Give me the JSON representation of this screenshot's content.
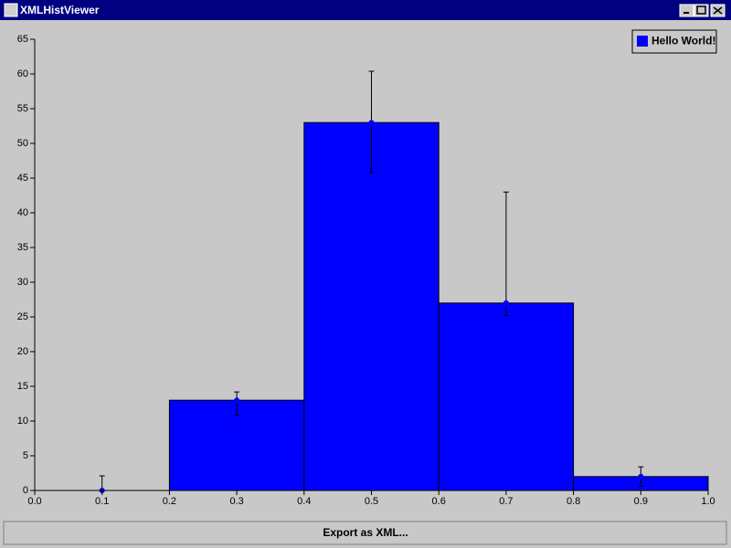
{
  "window": {
    "title": "XMLHistViewer"
  },
  "chart_data": {
    "type": "histogram",
    "bins": [
      0,
      0.2,
      0.4,
      0.6,
      0.8,
      1.0
    ],
    "series": [
      {
        "name": "Hello World!",
        "color": "#0000ff",
        "values": [
          0,
          13,
          53,
          27,
          2
        ],
        "error_minus": [
          0,
          2.2,
          7.2,
          1.8,
          1.4
        ],
        "error_plus": [
          2.1,
          1.2,
          7.4,
          16,
          1.4
        ]
      }
    ],
    "xlim": [
      0,
      1.0
    ],
    "xticks": [
      {
        "value": 0,
        "label": "0.0"
      },
      0.1,
      0.2,
      0.3,
      0.4,
      0.5,
      0.6,
      0.7,
      0.8,
      0.9,
      {
        "value": 1.0,
        "label": "1.0"
      }
    ],
    "ylim": [
      0,
      65
    ],
    "yticks": [
      0,
      5,
      10,
      15,
      20,
      25,
      30,
      35,
      40,
      45,
      50,
      55,
      60,
      65
    ],
    "legend": "upper right"
  },
  "button": {
    "label": "Export as XML..."
  }
}
